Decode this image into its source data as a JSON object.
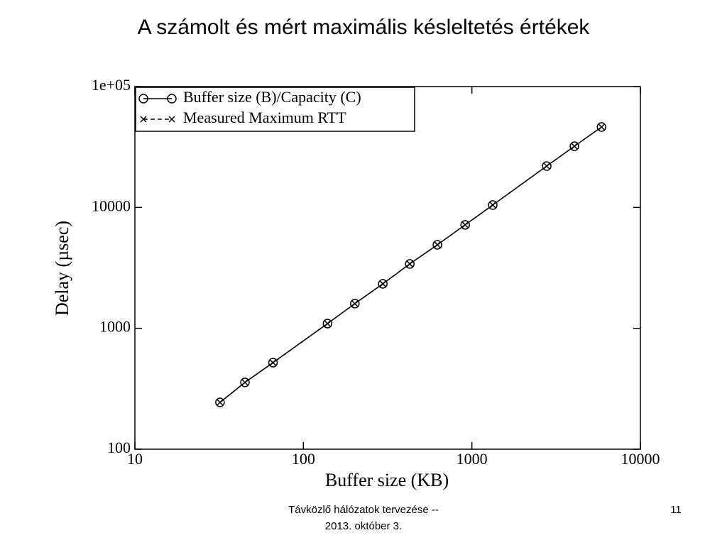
{
  "chart_data": {
    "type": "line",
    "title": "A számolt és mért maximális késleltetés értékek",
    "x_label": "Buffer size (KB)",
    "y_label": "Delay (µsec)",
    "x": [
      32,
      45,
      66,
      139,
      202,
      296,
      428,
      624,
      912,
      1330,
      2780,
      4060,
      5880
    ],
    "series": [
      {
        "name": "Buffer size (B)/Capacity (C)",
        "color": "#000000",
        "marker": "circle",
        "dash": "solid",
        "values": [
          244,
          357,
          520,
          1094,
          1600,
          2334,
          3410,
          4910,
          7180,
          10470,
          22000,
          32100,
          46300
        ]
      },
      {
        "name": "Measured Maximum RTT",
        "color": "#000000",
        "marker": "x",
        "dash": "dashed",
        "values": [
          244,
          357,
          520,
          1094,
          1600,
          2334,
          3410,
          4910,
          7180,
          10470,
          22000,
          32100,
          46300
        ]
      }
    ],
    "xlim": [
      10,
      10000
    ],
    "ylim": [
      100,
      100000
    ],
    "xticks": [
      10,
      100,
      1000,
      10000
    ],
    "yticks": [
      100,
      1000,
      10000,
      {
        "value": 100000,
        "label": "1e+05"
      }
    ],
    "xlog": true,
    "ylog": true,
    "legend": "upper left"
  },
  "footer": {
    "lines": [
      "Távközlő hálózatok tervezése --",
      "2013. október 3."
    ],
    "page": "11"
  }
}
